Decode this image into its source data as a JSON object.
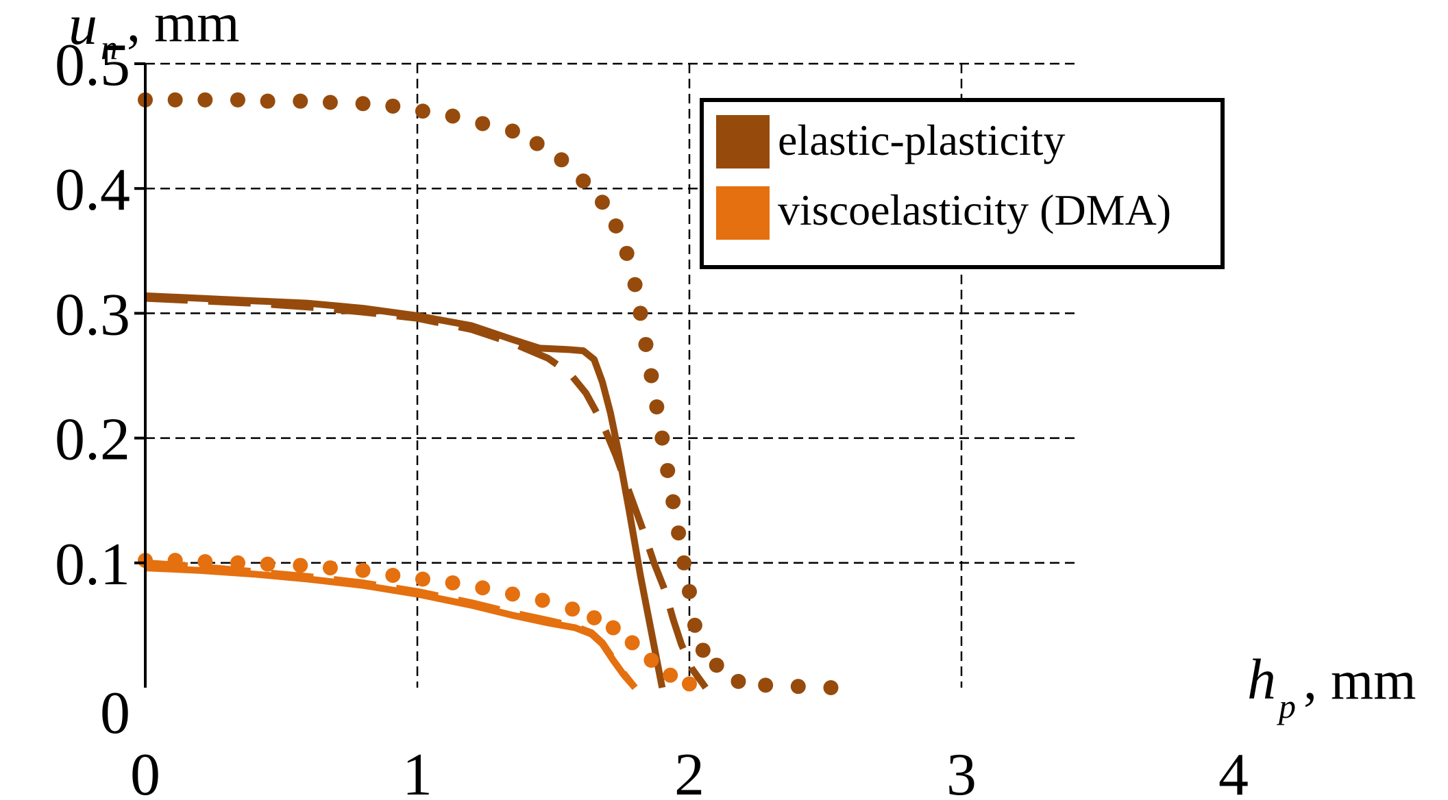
{
  "chart_data": {
    "type": "line",
    "xlabel": {
      "symbol": "h",
      "subscript": "p",
      "unit": ", mm"
    },
    "ylabel": {
      "symbol": "u",
      "subscript": "n",
      "unit": ", mm"
    },
    "xlim": [
      0,
      4
    ],
    "ylim": [
      0,
      0.5
    ],
    "xticks": [
      "0",
      "1",
      "2",
      "3",
      "4"
    ],
    "yticks": [
      "0",
      "0.1",
      "0.2",
      "0.3",
      "0.4",
      "0.5"
    ],
    "grid": true,
    "legend": {
      "position": "top-right",
      "entries": [
        {
          "label": "elastic-plasticity",
          "color": "#964B0C"
        },
        {
          "label": "viscoelasticity (DMA)",
          "color": "#E5700F"
        }
      ]
    },
    "series": [
      {
        "group": "elastic-plasticity",
        "style": "dotted",
        "color": "#964B0C",
        "x": [
          0,
          0.11,
          0.22,
          0.34,
          0.45,
          0.57,
          0.68,
          0.8,
          0.91,
          1.02,
          1.13,
          1.24,
          1.35,
          1.44,
          1.53,
          1.61,
          1.68,
          1.73,
          1.77,
          1.8,
          1.82,
          1.84,
          1.86,
          1.88,
          1.9,
          1.92,
          1.94,
          1.96,
          1.98,
          2.0,
          2.02,
          2.05,
          2.1,
          2.18,
          2.28,
          2.4,
          2.52
        ],
        "y": [
          0.471,
          0.471,
          0.471,
          0.471,
          0.47,
          0.47,
          0.469,
          0.468,
          0.466,
          0.462,
          0.458,
          0.452,
          0.446,
          0.436,
          0.423,
          0.406,
          0.389,
          0.37,
          0.348,
          0.323,
          0.3,
          0.275,
          0.25,
          0.225,
          0.2,
          0.174,
          0.149,
          0.124,
          0.1,
          0.077,
          0.05,
          0.03,
          0.018,
          0.005,
          0.002,
          0.001,
          0.0
        ]
      },
      {
        "group": "elastic-plasticity",
        "style": "solid",
        "color": "#964B0C",
        "x": [
          0,
          0.2,
          0.4,
          0.6,
          0.8,
          1.0,
          1.2,
          1.35,
          1.45,
          1.55,
          1.61,
          1.65,
          1.68,
          1.71,
          1.74,
          1.78,
          1.82,
          1.86,
          1.9
        ],
        "y": [
          0.314,
          0.312,
          0.31,
          0.308,
          0.304,
          0.298,
          0.29,
          0.279,
          0.272,
          0.271,
          0.27,
          0.263,
          0.245,
          0.22,
          0.188,
          0.14,
          0.09,
          0.045,
          0.0
        ]
      },
      {
        "group": "elastic-plasticity",
        "style": "dashed",
        "color": "#964B0C",
        "x": [
          0,
          0.2,
          0.4,
          0.6,
          0.8,
          1.0,
          1.2,
          1.35,
          1.48,
          1.56,
          1.62,
          1.68,
          1.73,
          1.78,
          1.83,
          1.87,
          1.91,
          1.94,
          1.97,
          2.01,
          2.06
        ],
        "y": [
          0.312,
          0.31,
          0.308,
          0.305,
          0.301,
          0.296,
          0.287,
          0.276,
          0.264,
          0.252,
          0.236,
          0.212,
          0.186,
          0.156,
          0.126,
          0.1,
          0.078,
          0.055,
          0.035,
          0.015,
          0.0
        ]
      },
      {
        "group": "viscoelasticity (DMA)",
        "style": "dotted",
        "color": "#E5700F",
        "x": [
          0,
          0.11,
          0.22,
          0.34,
          0.45,
          0.57,
          0.68,
          0.8,
          0.91,
          1.02,
          1.13,
          1.24,
          1.35,
          1.46,
          1.57,
          1.65,
          1.72,
          1.79,
          1.86,
          1.93,
          2.0
        ],
        "y": [
          0.102,
          0.102,
          0.101,
          0.1,
          0.099,
          0.098,
          0.096,
          0.094,
          0.09,
          0.087,
          0.084,
          0.08,
          0.075,
          0.07,
          0.063,
          0.056,
          0.048,
          0.036,
          0.022,
          0.01,
          0.003
        ]
      },
      {
        "group": "viscoelasticity (DMA)",
        "style": "solid",
        "color": "#E5700F",
        "x": [
          0,
          0.2,
          0.4,
          0.6,
          0.8,
          1.0,
          1.2,
          1.35,
          1.48,
          1.58,
          1.64,
          1.68,
          1.72,
          1.76,
          1.8
        ],
        "y": [
          0.096,
          0.094,
          0.091,
          0.087,
          0.082,
          0.075,
          0.066,
          0.058,
          0.052,
          0.048,
          0.043,
          0.035,
          0.022,
          0.01,
          0.0
        ]
      },
      {
        "group": "viscoelasticity (DMA)",
        "style": "dashed",
        "color": "#E5700F",
        "x": [
          0,
          0.2,
          0.4,
          0.6,
          0.8,
          1.0,
          1.2,
          1.35,
          1.48,
          1.58,
          1.64,
          1.68,
          1.72,
          1.76,
          1.8
        ],
        "y": [
          0.1,
          0.097,
          0.093,
          0.089,
          0.084,
          0.077,
          0.068,
          0.06,
          0.054,
          0.049,
          0.044,
          0.036,
          0.023,
          0.011,
          0.0
        ]
      }
    ]
  }
}
